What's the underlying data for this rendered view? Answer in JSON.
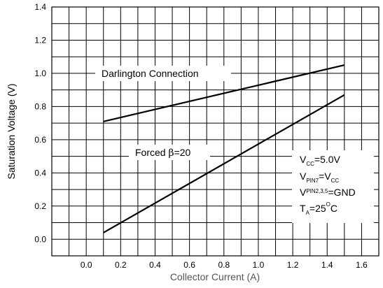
{
  "chart_data": {
    "type": "line",
    "xlabel": "Collector Current (A)",
    "ylabel": "Saturation Voltage (V)",
    "xlim": [
      -0.2,
      1.7
    ],
    "ylim": [
      -0.1,
      1.4
    ],
    "grid": true,
    "x_ticks": [
      "0.0",
      "0.2",
      "0.4",
      "0.6",
      "0.8",
      "1.0",
      "1.2",
      "1.4",
      "1.6"
    ],
    "y_ticks": [
      "0.0",
      "0.2",
      "0.4",
      "0.6",
      "0.8",
      "1.0",
      "1.2",
      "1.4"
    ],
    "series": [
      {
        "name": "Darlington Connection",
        "x": [
          0.1,
          1.5
        ],
        "y": [
          0.71,
          1.05
        ]
      },
      {
        "name": "Forced β=20",
        "name_parts": [
          "Forced ",
          "β",
          "=20"
        ],
        "x": [
          0.1,
          1.5
        ],
        "y": [
          0.04,
          0.87
        ]
      }
    ],
    "conditions": {
      "vcc": {
        "main": "V",
        "sub": "CC",
        "rest": "=5.0V"
      },
      "vpin7": {
        "main": "V",
        "sub": "PIN7",
        "mid": "=V",
        "sub2": "CC"
      },
      "vpin235": {
        "main": "V",
        "sub": "PIN2,3,5",
        "rest": "=GND"
      },
      "ta": {
        "main": "T",
        "sub": "A",
        "mid": "=25",
        "sup": "O",
        "rest": "C"
      }
    }
  }
}
